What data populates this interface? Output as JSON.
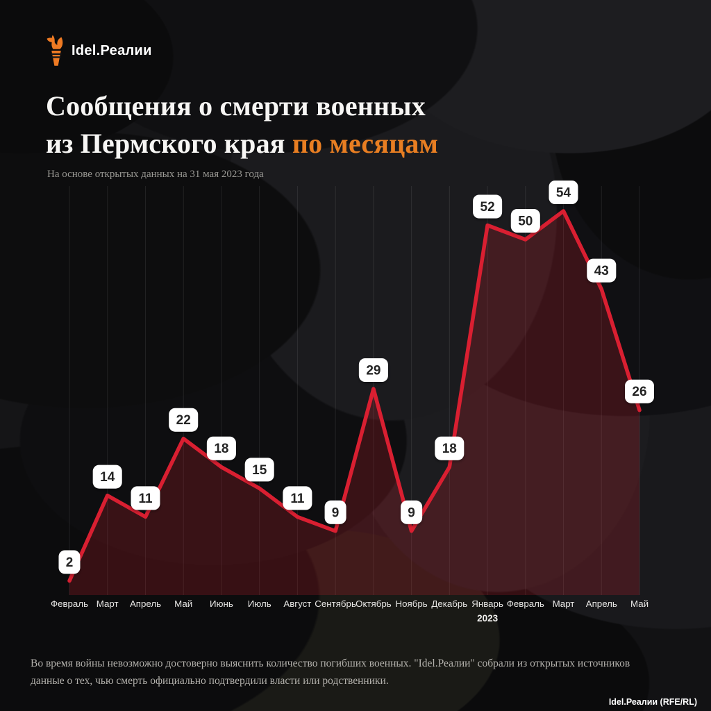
{
  "brand": {
    "logo_text": "Idel.Реалии",
    "attribution": "Idel.Реалии (RFE/RL)"
  },
  "header": {
    "title_line1": "Сообщения о смерти военных",
    "title_line2": "из Пермского края",
    "title_accent": "по месяцам",
    "subtitle": "На основе открытых данных на 31 мая 2023 года"
  },
  "chart_data": {
    "type": "area",
    "title": "Сообщения о смерти военных из Пермского края по месяцам",
    "categories": [
      "Февраль",
      "Март",
      "Апрель",
      "Май",
      "Июнь",
      "Июль",
      "Август",
      "Сентябрь",
      "Октябрь",
      "Ноябрь",
      "Декабрь",
      "Январь",
      "Февраль",
      "Март",
      "Апрель",
      "Май"
    ],
    "values": [
      2,
      14,
      11,
      22,
      18,
      15,
      11,
      9,
      29,
      9,
      18,
      52,
      50,
      54,
      43,
      26
    ],
    "year_label": "2023",
    "year_index": 11,
    "ylim": [
      0,
      54
    ],
    "grid": "vertical-only",
    "legend": "none",
    "colors": {
      "line": "#d91f31",
      "area_fill": "rgba(215,32,48,0.21)",
      "gridline": "rgba(255,255,255,0.09)",
      "label_bg": "#ffffff",
      "label_text": "#242424",
      "axis_text": "#e8e7e5"
    }
  },
  "footer": {
    "line1": "Во время войны невозможно достоверно выяснить количество погибших военных. \"Idel.Реалии\" собрали из открытых источников",
    "line2": "данные о тех, чью смерть официально подтвердили власти или родственники."
  }
}
